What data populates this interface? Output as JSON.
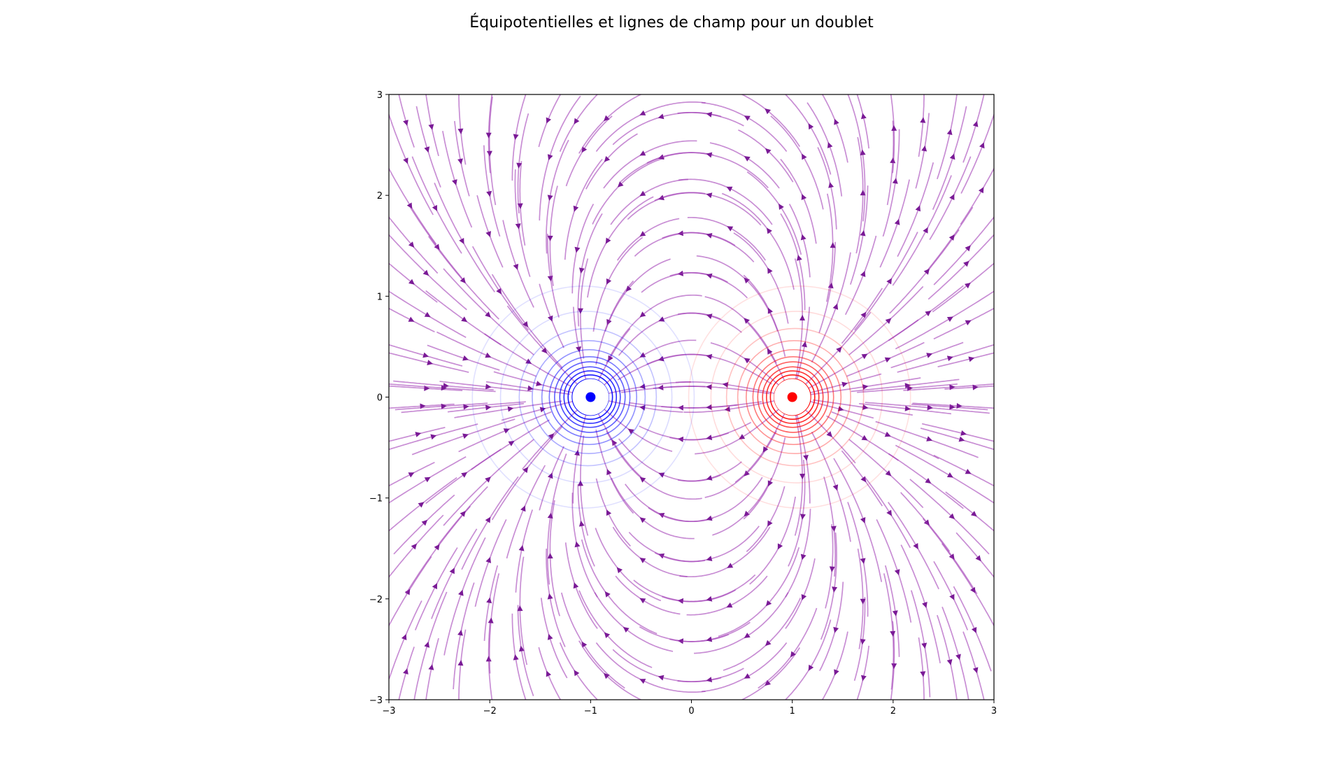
{
  "chart_data": {
    "type": "streamplot",
    "title": "Équipotentielles et lignes de champ pour un doublet",
    "xlabel": "",
    "ylabel": "",
    "xlim": [
      -3,
      3
    ],
    "ylim": [
      -3,
      3
    ],
    "x_ticks": [
      "−3",
      "−2",
      "−1",
      "0",
      "1",
      "2",
      "3"
    ],
    "y_ticks": [
      "−3",
      "−2",
      "−1",
      "0",
      "1",
      "2",
      "3"
    ],
    "grid": false,
    "charges": [
      {
        "x": -1,
        "y": 0,
        "sign": "negative",
        "color": "#0000ff"
      },
      {
        "x": 1,
        "y": 0,
        "sign": "positive",
        "color": "#ff0000"
      }
    ],
    "equipotentials": {
      "negative_color": "#0000ff",
      "positive_color": "#ff0000",
      "radii": [
        0.18,
        0.22,
        0.26,
        0.3,
        0.35,
        0.4,
        0.47,
        0.56,
        0.68,
        0.85,
        1.1
      ]
    },
    "field_lines": {
      "color": "#9b30b0",
      "arrow_color": "#7a1a96",
      "seed_x": [
        -2.85,
        -2.6,
        -2.3,
        -2.0,
        -1.7,
        -1.4,
        -1.1,
        -0.8,
        -0.5,
        -0.2,
        0.2,
        0.5,
        0.8,
        1.1,
        1.4,
        1.7,
        2.0,
        2.3,
        2.6,
        2.85
      ],
      "seed_y": [
        -2.8,
        -2.4,
        -2.0,
        -1.6,
        -1.2,
        -0.8,
        -0.4,
        -0.1,
        0.1,
        0.4,
        0.8,
        1.2,
        1.6,
        2.0,
        2.4,
        2.8
      ]
    }
  }
}
